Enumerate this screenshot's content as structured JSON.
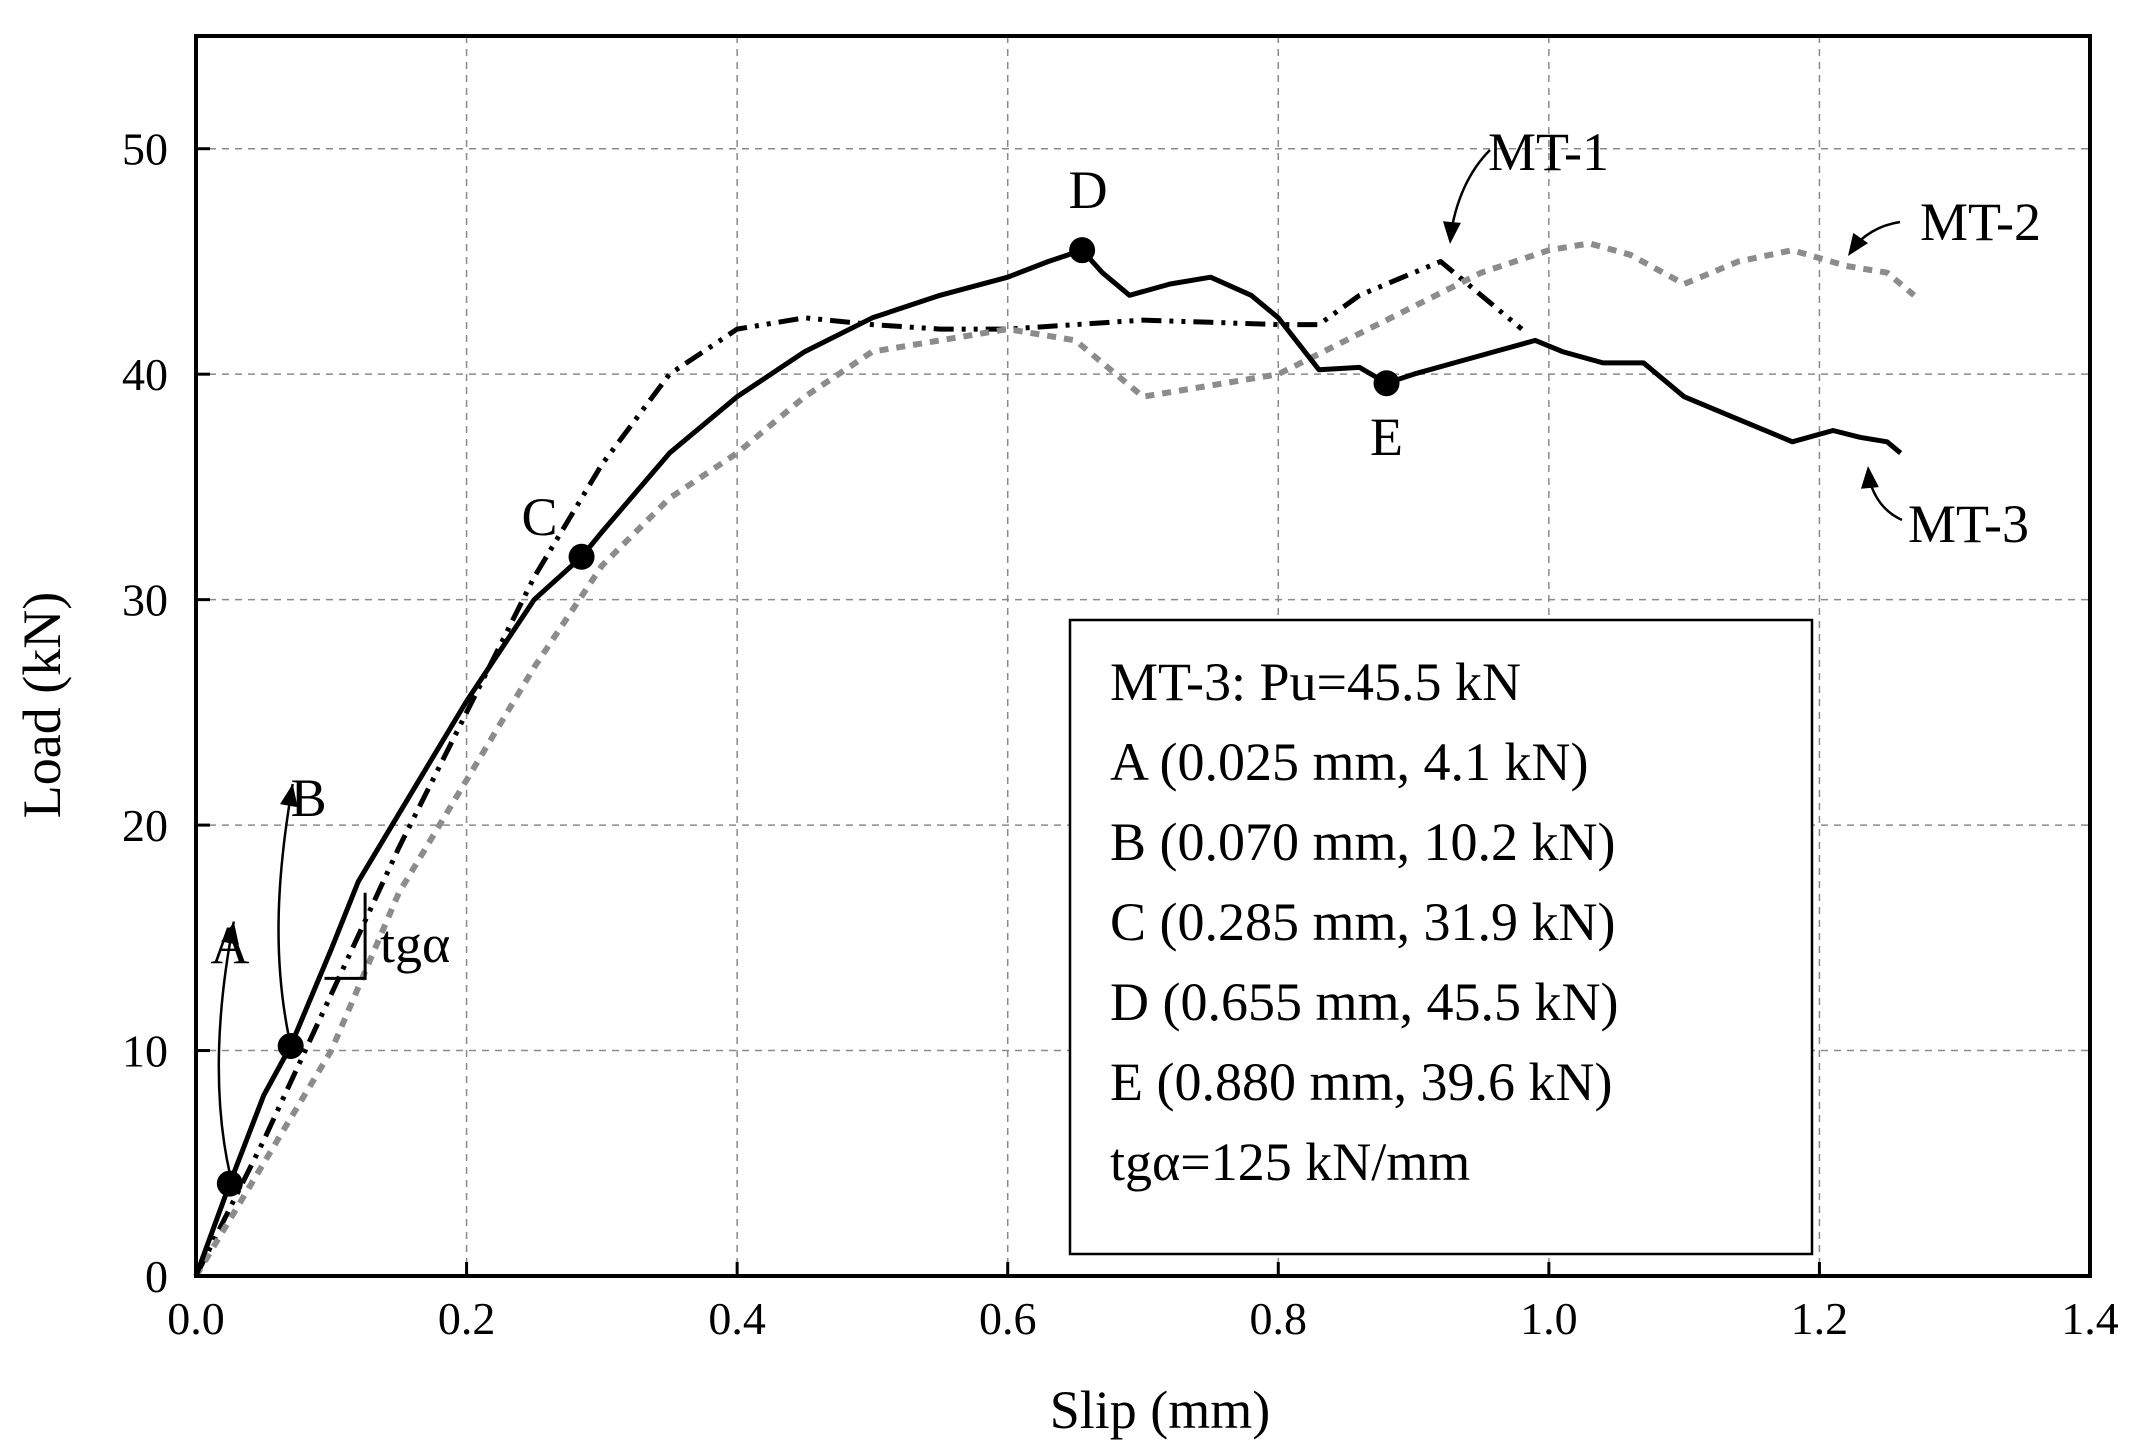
{
  "chart_data": {
    "type": "line",
    "title": "",
    "xlabel": "Slip (mm)",
    "ylabel": "Load (kN)",
    "xlim": [
      0.0,
      1.4
    ],
    "ylim": [
      0,
      55
    ],
    "grid": true,
    "x_ticks": [
      0.0,
      0.2,
      0.4,
      0.6,
      0.8,
      1.0,
      1.2,
      1.4
    ],
    "x_tick_labels": [
      "0.0",
      "0.2",
      "0.4",
      "0.6",
      "0.8",
      "1.0",
      "1.2",
      "1.4"
    ],
    "y_ticks": [
      0,
      10,
      20,
      30,
      40,
      50
    ],
    "y_tick_labels": [
      "0",
      "10",
      "20",
      "30",
      "40",
      "50"
    ],
    "series": [
      {
        "name": "MT-1",
        "style": "dash-dot-dot",
        "color": "#000000",
        "x": [
          0.0,
          0.05,
          0.1,
          0.15,
          0.2,
          0.25,
          0.3,
          0.35,
          0.4,
          0.45,
          0.5,
          0.55,
          0.6,
          0.65,
          0.7,
          0.75,
          0.8,
          0.83,
          0.86,
          0.9,
          0.92,
          0.95,
          0.98
        ],
        "y": [
          0.0,
          6.0,
          12.5,
          19.0,
          25.0,
          31.0,
          36.0,
          40.0,
          42.0,
          42.5,
          42.2,
          42.0,
          42.0,
          42.2,
          42.4,
          42.3,
          42.2,
          42.2,
          43.5,
          44.5,
          45.0,
          43.5,
          42.0
        ]
      },
      {
        "name": "MT-2",
        "style": "dotted",
        "color": "#8c8c8c",
        "x": [
          0.0,
          0.05,
          0.1,
          0.15,
          0.2,
          0.25,
          0.3,
          0.35,
          0.4,
          0.45,
          0.5,
          0.55,
          0.6,
          0.65,
          0.7,
          0.75,
          0.8,
          0.85,
          0.9,
          0.95,
          1.0,
          1.03,
          1.06,
          1.1,
          1.14,
          1.18,
          1.22,
          1.25,
          1.27
        ],
        "y": [
          0.0,
          5.0,
          10.0,
          17.0,
          22.0,
          27.0,
          31.5,
          34.5,
          36.5,
          39.0,
          41.0,
          41.5,
          42.0,
          41.5,
          39.0,
          39.5,
          40.0,
          41.5,
          43.0,
          44.5,
          45.5,
          45.8,
          45.3,
          44.0,
          45.0,
          45.5,
          44.8,
          44.5,
          43.5
        ]
      },
      {
        "name": "MT-3",
        "style": "solid",
        "color": "#000000",
        "x": [
          0.0,
          0.025,
          0.05,
          0.07,
          0.1,
          0.12,
          0.15,
          0.2,
          0.25,
          0.285,
          0.3,
          0.35,
          0.4,
          0.45,
          0.5,
          0.55,
          0.6,
          0.63,
          0.655,
          0.67,
          0.69,
          0.72,
          0.75,
          0.78,
          0.8,
          0.83,
          0.86,
          0.88,
          0.9,
          0.93,
          0.96,
          0.99,
          1.01,
          1.04,
          1.07,
          1.1,
          1.14,
          1.18,
          1.21,
          1.23,
          1.25,
          1.26
        ],
        "y": [
          0.0,
          4.1,
          8.0,
          10.2,
          14.5,
          17.5,
          20.5,
          25.5,
          30.0,
          31.9,
          33.0,
          36.5,
          39.0,
          41.0,
          42.5,
          43.5,
          44.3,
          45.0,
          45.5,
          44.5,
          43.5,
          44.0,
          44.3,
          43.5,
          42.5,
          40.2,
          40.3,
          39.6,
          40.0,
          40.5,
          41.0,
          41.5,
          41.0,
          40.5,
          40.5,
          39.0,
          38.0,
          37.0,
          37.5,
          37.2,
          37.0,
          36.5
        ]
      }
    ],
    "points": [
      {
        "label": "A",
        "x": 0.025,
        "y": 4.1
      },
      {
        "label": "B",
        "x": 0.07,
        "y": 10.2
      },
      {
        "label": "C",
        "x": 0.285,
        "y": 31.9
      },
      {
        "label": "D",
        "x": 0.655,
        "y": 45.5
      },
      {
        "label": "E",
        "x": 0.88,
        "y": 39.6
      }
    ],
    "annotations": {
      "slope_label": "tgα",
      "series_labels": [
        "MT-1",
        "MT-2",
        "MT-3"
      ]
    },
    "info_box": [
      "MT-3: Pu=45.5 kN",
      "A (0.025 mm, 4.1 kN)",
      "B (0.070 mm, 10.2 kN)",
      "C (0.285 mm, 31.9 kN)",
      "D (0.655 mm, 45.5 kN)",
      "E (0.880 mm, 39.6 kN)",
      "tgα=125 kN/mm"
    ]
  }
}
